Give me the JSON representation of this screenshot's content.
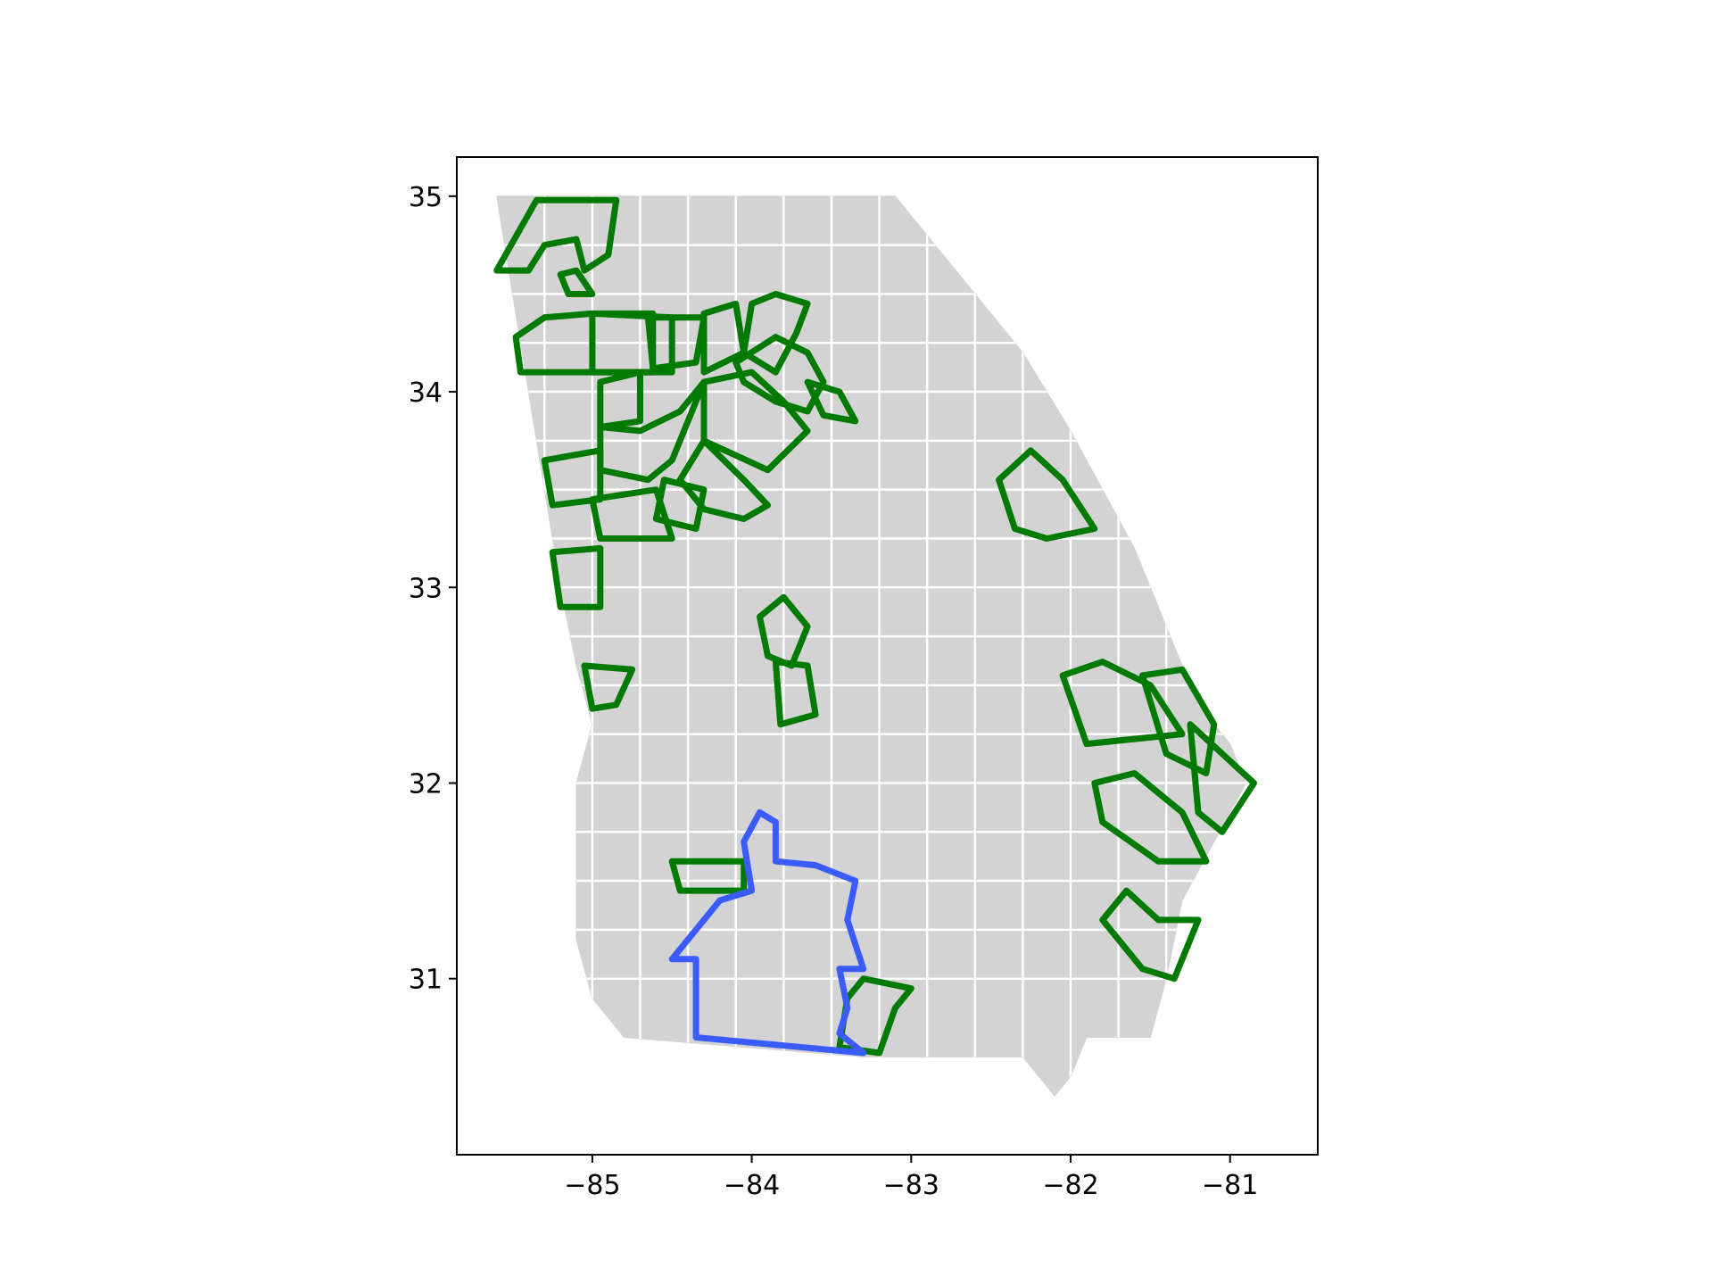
{
  "map": {
    "type": "choropleth-outline",
    "colors": {
      "land": "#d3d3d3",
      "county_border": "#ffffff",
      "green_outline": "#007a00",
      "blue_outline": "#3a5cff"
    },
    "x_axis": {
      "range": [
        -85.85,
        -80.45
      ],
      "ticks": [
        {
          "value": -85,
          "label": "−85"
        },
        {
          "value": -84,
          "label": "−84"
        },
        {
          "value": -83,
          "label": "−83"
        },
        {
          "value": -82,
          "label": "−82"
        },
        {
          "value": -81,
          "label": "−81"
        }
      ]
    },
    "y_axis": {
      "range": [
        30.1,
        35.2
      ],
      "ticks": [
        {
          "value": 35,
          "label": "35"
        },
        {
          "value": 34,
          "label": "34"
        },
        {
          "value": 33,
          "label": "33"
        },
        {
          "value": 32,
          "label": "32"
        },
        {
          "value": 31,
          "label": "31"
        }
      ]
    },
    "state_outline": [
      [
        -85.6,
        35.0
      ],
      [
        -83.1,
        35.0
      ],
      [
        -82.9,
        34.8
      ],
      [
        -82.6,
        34.5
      ],
      [
        -82.3,
        34.2
      ],
      [
        -82.0,
        33.8
      ],
      [
        -81.8,
        33.5
      ],
      [
        -81.6,
        33.2
      ],
      [
        -81.4,
        32.8
      ],
      [
        -81.2,
        32.4
      ],
      [
        -81.0,
        32.2
      ],
      [
        -80.9,
        32.0
      ],
      [
        -81.1,
        31.7
      ],
      [
        -81.3,
        31.4
      ],
      [
        -81.4,
        31.0
      ],
      [
        -81.5,
        30.7
      ],
      [
        -81.9,
        30.7
      ],
      [
        -82.0,
        30.5
      ],
      [
        -82.1,
        30.4
      ],
      [
        -82.3,
        30.6
      ],
      [
        -83.3,
        30.6
      ],
      [
        -84.8,
        30.7
      ],
      [
        -85.0,
        30.9
      ],
      [
        -85.1,
        31.2
      ],
      [
        -85.1,
        31.6
      ],
      [
        -85.1,
        32.0
      ],
      [
        -85.0,
        32.3
      ],
      [
        -85.1,
        32.6
      ],
      [
        -85.2,
        33.0
      ],
      [
        -85.3,
        33.5
      ],
      [
        -85.4,
        34.0
      ],
      [
        -85.5,
        34.5
      ],
      [
        -85.6,
        35.0
      ]
    ],
    "county_grid": {
      "lon_lines": [
        -85.3,
        -85.0,
        -84.7,
        -84.4,
        -84.1,
        -83.8,
        -83.5,
        -83.2,
        -82.9,
        -82.6,
        -82.3,
        -82.0,
        -81.7,
        -81.4
      ],
      "lat_lines": [
        34.75,
        34.5,
        34.25,
        34.0,
        33.75,
        33.5,
        33.25,
        33.0,
        32.75,
        32.5,
        32.25,
        32.0,
        31.75,
        31.5,
        31.25,
        31.0
      ]
    },
    "green_regions": [
      {
        "points": [
          [
            -85.6,
            34.62
          ],
          [
            -85.35,
            34.98
          ],
          [
            -84.85,
            34.98
          ],
          [
            -84.9,
            34.7
          ],
          [
            -85.05,
            34.62
          ],
          [
            -85.1,
            34.78
          ],
          [
            -85.3,
            34.75
          ],
          [
            -85.4,
            34.62
          ]
        ]
      },
      {
        "points": [
          [
            -85.15,
            34.5
          ],
          [
            -85.0,
            34.5
          ],
          [
            -85.1,
            34.62
          ],
          [
            -85.2,
            34.6
          ]
        ]
      },
      {
        "points": [
          [
            -85.48,
            34.28
          ],
          [
            -85.3,
            34.38
          ],
          [
            -85.0,
            34.4
          ],
          [
            -84.5,
            34.38
          ],
          [
            -84.5,
            34.1
          ],
          [
            -85.0,
            34.1
          ],
          [
            -85.45,
            34.1
          ]
        ]
      },
      {
        "points": [
          [
            -85.0,
            34.4
          ],
          [
            -84.62,
            34.4
          ],
          [
            -84.62,
            34.1
          ],
          [
            -85.0,
            34.1
          ]
        ]
      },
      {
        "points": [
          [
            -84.65,
            34.38
          ],
          [
            -84.3,
            34.38
          ],
          [
            -84.35,
            34.15
          ],
          [
            -84.62,
            34.12
          ]
        ]
      },
      {
        "points": [
          [
            -84.3,
            34.4
          ],
          [
            -84.1,
            34.45
          ],
          [
            -84.05,
            34.2
          ],
          [
            -84.3,
            34.1
          ]
        ]
      },
      {
        "points": [
          [
            -84.0,
            34.45
          ],
          [
            -83.85,
            34.5
          ],
          [
            -83.65,
            34.45
          ],
          [
            -83.72,
            34.3
          ],
          [
            -83.85,
            34.1
          ],
          [
            -84.05,
            34.2
          ]
        ]
      },
      {
        "points": [
          [
            -84.1,
            34.15
          ],
          [
            -83.85,
            34.28
          ],
          [
            -83.65,
            34.2
          ],
          [
            -83.55,
            34.05
          ],
          [
            -83.65,
            33.9
          ],
          [
            -83.85,
            33.95
          ],
          [
            -84.05,
            34.05
          ]
        ]
      },
      {
        "points": [
          [
            -83.65,
            34.05
          ],
          [
            -83.45,
            34.0
          ],
          [
            -83.35,
            33.85
          ],
          [
            -83.55,
            33.88
          ]
        ]
      },
      {
        "points": [
          [
            -84.95,
            34.05
          ],
          [
            -84.7,
            34.1
          ],
          [
            -84.7,
            33.85
          ],
          [
            -84.95,
            33.82
          ]
        ]
      },
      {
        "points": [
          [
            -84.95,
            33.82
          ],
          [
            -84.7,
            33.8
          ],
          [
            -84.45,
            33.9
          ],
          [
            -84.3,
            34.05
          ],
          [
            -84.5,
            33.65
          ],
          [
            -84.65,
            33.55
          ],
          [
            -84.95,
            33.6
          ]
        ]
      },
      {
        "points": [
          [
            -85.3,
            33.65
          ],
          [
            -84.95,
            33.7
          ],
          [
            -84.95,
            33.45
          ],
          [
            -85.25,
            33.42
          ]
        ]
      },
      {
        "points": [
          [
            -84.3,
            34.05
          ],
          [
            -84.0,
            34.1
          ],
          [
            -83.8,
            33.95
          ],
          [
            -83.65,
            33.8
          ],
          [
            -83.9,
            33.6
          ],
          [
            -84.3,
            33.75
          ]
        ]
      },
      {
        "points": [
          [
            -84.3,
            33.75
          ],
          [
            -84.05,
            33.55
          ],
          [
            -83.9,
            33.42
          ],
          [
            -84.05,
            33.35
          ],
          [
            -84.3,
            33.4
          ],
          [
            -84.45,
            33.55
          ]
        ]
      },
      {
        "points": [
          [
            -84.55,
            33.55
          ],
          [
            -84.3,
            33.5
          ],
          [
            -84.35,
            33.3
          ],
          [
            -84.6,
            33.35
          ]
        ]
      },
      {
        "points": [
          [
            -85.0,
            33.45
          ],
          [
            -84.6,
            33.5
          ],
          [
            -84.5,
            33.25
          ],
          [
            -84.95,
            33.25
          ]
        ]
      },
      {
        "points": [
          [
            -85.25,
            33.18
          ],
          [
            -84.95,
            33.2
          ],
          [
            -84.95,
            32.9
          ],
          [
            -85.2,
            32.9
          ]
        ]
      },
      {
        "points": [
          [
            -85.05,
            32.6
          ],
          [
            -84.75,
            32.58
          ],
          [
            -84.85,
            32.4
          ],
          [
            -85.0,
            32.38
          ]
        ]
      },
      {
        "points": [
          [
            -83.95,
            32.85
          ],
          [
            -83.8,
            32.95
          ],
          [
            -83.65,
            32.8
          ],
          [
            -83.75,
            32.6
          ],
          [
            -83.9,
            32.65
          ]
        ]
      },
      {
        "points": [
          [
            -83.85,
            32.62
          ],
          [
            -83.65,
            32.6
          ],
          [
            -83.6,
            32.35
          ],
          [
            -83.82,
            32.3
          ]
        ]
      },
      {
        "points": [
          [
            -82.45,
            33.55
          ],
          [
            -82.25,
            33.7
          ],
          [
            -82.05,
            33.55
          ],
          [
            -81.85,
            33.3
          ],
          [
            -82.15,
            33.25
          ],
          [
            -82.35,
            33.3
          ]
        ]
      },
      {
        "points": [
          [
            -82.05,
            32.55
          ],
          [
            -81.8,
            32.62
          ],
          [
            -81.5,
            32.5
          ],
          [
            -81.3,
            32.25
          ],
          [
            -81.9,
            32.2
          ]
        ]
      },
      {
        "points": [
          [
            -81.55,
            32.55
          ],
          [
            -81.3,
            32.58
          ],
          [
            -81.1,
            32.3
          ],
          [
            -81.15,
            32.05
          ],
          [
            -81.4,
            32.15
          ]
        ]
      },
      {
        "points": [
          [
            -81.25,
            32.3
          ],
          [
            -81.05,
            32.15
          ],
          [
            -80.85,
            32.0
          ],
          [
            -81.05,
            31.75
          ],
          [
            -81.2,
            31.85
          ]
        ]
      },
      {
        "points": [
          [
            -81.85,
            32.0
          ],
          [
            -81.6,
            32.05
          ],
          [
            -81.3,
            31.85
          ],
          [
            -81.15,
            31.6
          ],
          [
            -81.45,
            31.6
          ],
          [
            -81.8,
            31.8
          ]
        ]
      },
      {
        "points": [
          [
            -81.8,
            31.3
          ],
          [
            -81.65,
            31.45
          ],
          [
            -81.45,
            31.3
          ],
          [
            -81.2,
            31.3
          ],
          [
            -81.35,
            31.0
          ],
          [
            -81.55,
            31.05
          ]
        ]
      },
      {
        "points": [
          [
            -84.5,
            31.6
          ],
          [
            -84.05,
            31.6
          ],
          [
            -84.05,
            31.45
          ],
          [
            -84.45,
            31.45
          ]
        ]
      },
      {
        "points": [
          [
            -83.3,
            31.0
          ],
          [
            -83.0,
            30.95
          ],
          [
            -83.1,
            30.85
          ],
          [
            -83.2,
            30.62
          ],
          [
            -83.45,
            30.65
          ],
          [
            -83.4,
            30.9
          ]
        ]
      }
    ],
    "blue_region": {
      "points": [
        [
          -84.5,
          31.1
        ],
        [
          -84.4,
          31.2
        ],
        [
          -84.2,
          31.4
        ],
        [
          -84.0,
          31.45
        ],
        [
          -84.05,
          31.7
        ],
        [
          -83.95,
          31.85
        ],
        [
          -83.85,
          31.8
        ],
        [
          -83.85,
          31.6
        ],
        [
          -83.6,
          31.58
        ],
        [
          -83.35,
          31.5
        ],
        [
          -83.4,
          31.3
        ],
        [
          -83.3,
          31.05
        ],
        [
          -83.45,
          31.05
        ],
        [
          -83.4,
          30.85
        ],
        [
          -83.45,
          30.72
        ],
        [
          -83.3,
          30.62
        ],
        [
          -84.35,
          30.7
        ],
        [
          -84.35,
          31.1
        ]
      ]
    }
  }
}
